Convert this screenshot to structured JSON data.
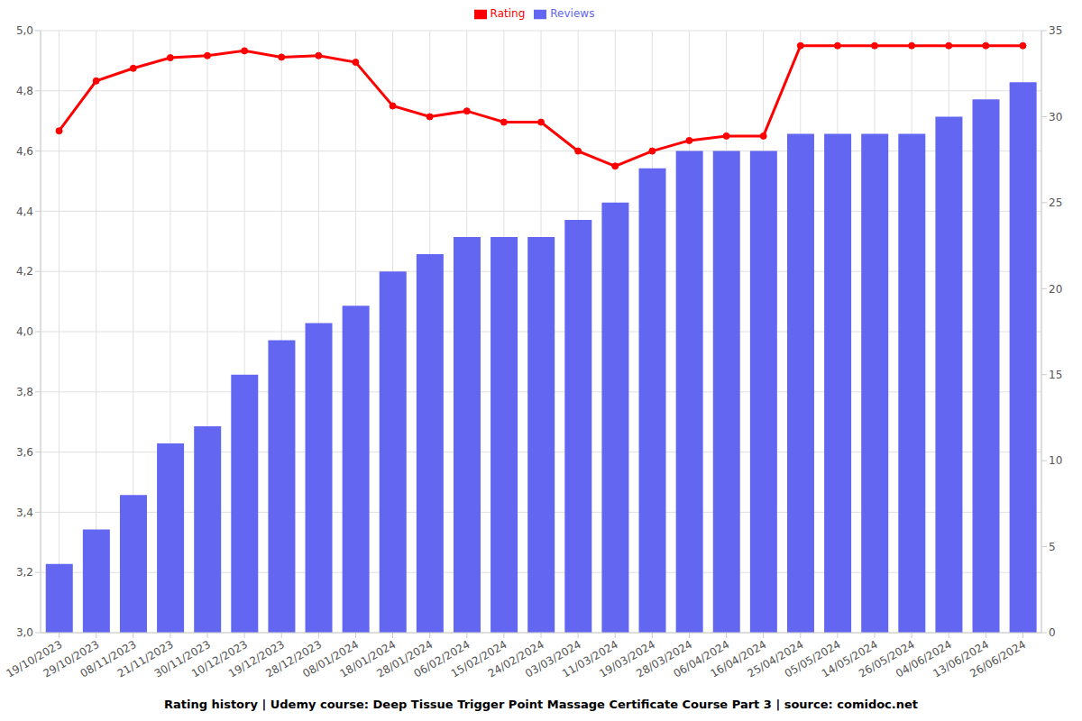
{
  "chart_data": {
    "type": "bar",
    "title": "Rating history | Udemy course: Deep Tissue Trigger Point Massage Certificate Course Part 3 | source: comidoc.net",
    "categories": [
      "19/10/2023",
      "29/10/2023",
      "08/11/2023",
      "21/11/2023",
      "30/11/2023",
      "10/12/2023",
      "19/12/2023",
      "28/12/2023",
      "08/01/2024",
      "18/01/2024",
      "28/01/2024",
      "06/02/2024",
      "15/02/2024",
      "24/02/2024",
      "03/03/2024",
      "11/03/2024",
      "19/03/2024",
      "28/03/2024",
      "06/04/2024",
      "16/04/2024",
      "25/04/2024",
      "05/05/2024",
      "14/05/2024",
      "26/05/2024",
      "04/06/2024",
      "13/06/2024",
      "26/06/2024"
    ],
    "series": [
      {
        "name": "Rating",
        "type": "line",
        "color": "#ff0000",
        "marker": "circle",
        "values": [
          4.667,
          4.833,
          4.875,
          4.91,
          4.917,
          4.933,
          4.912,
          4.917,
          4.895,
          4.75,
          4.714,
          4.733,
          4.696,
          4.696,
          4.6,
          4.55,
          4.6,
          4.635,
          4.65,
          4.65,
          4.95,
          4.95,
          4.95,
          4.95,
          4.95,
          4.95,
          4.95
        ]
      },
      {
        "name": "Reviews",
        "type": "bar",
        "axis": "y2",
        "color": "#6366f1",
        "values": [
          4,
          6,
          8,
          11,
          12,
          15,
          17,
          18,
          19,
          21,
          22,
          23,
          23,
          23,
          24,
          25,
          27,
          28,
          28,
          28,
          29,
          29,
          29,
          29,
          30,
          31,
          32
        ]
      }
    ],
    "ylim": [
      3,
      5
    ],
    "yticks": [
      {
        "value": 3,
        "label": "3,0"
      },
      {
        "value": 3.2,
        "label": "3,2"
      },
      {
        "value": 3.4,
        "label": "3,4"
      },
      {
        "value": 3.6,
        "label": "3,6"
      },
      {
        "value": 3.8,
        "label": "3,8"
      },
      {
        "value": 4,
        "label": "4,0"
      },
      {
        "value": 4.2,
        "label": "4,2"
      },
      {
        "value": 4.4,
        "label": "4,4"
      },
      {
        "value": 4.6,
        "label": "4,6"
      },
      {
        "value": 4.8,
        "label": "4,8"
      },
      {
        "value": 5,
        "label": "5,0"
      }
    ],
    "y2lim": [
      0,
      35
    ],
    "y2ticks": [
      0,
      5,
      10,
      15,
      20,
      25,
      30,
      35
    ],
    "grid": true,
    "legend": "top"
  }
}
